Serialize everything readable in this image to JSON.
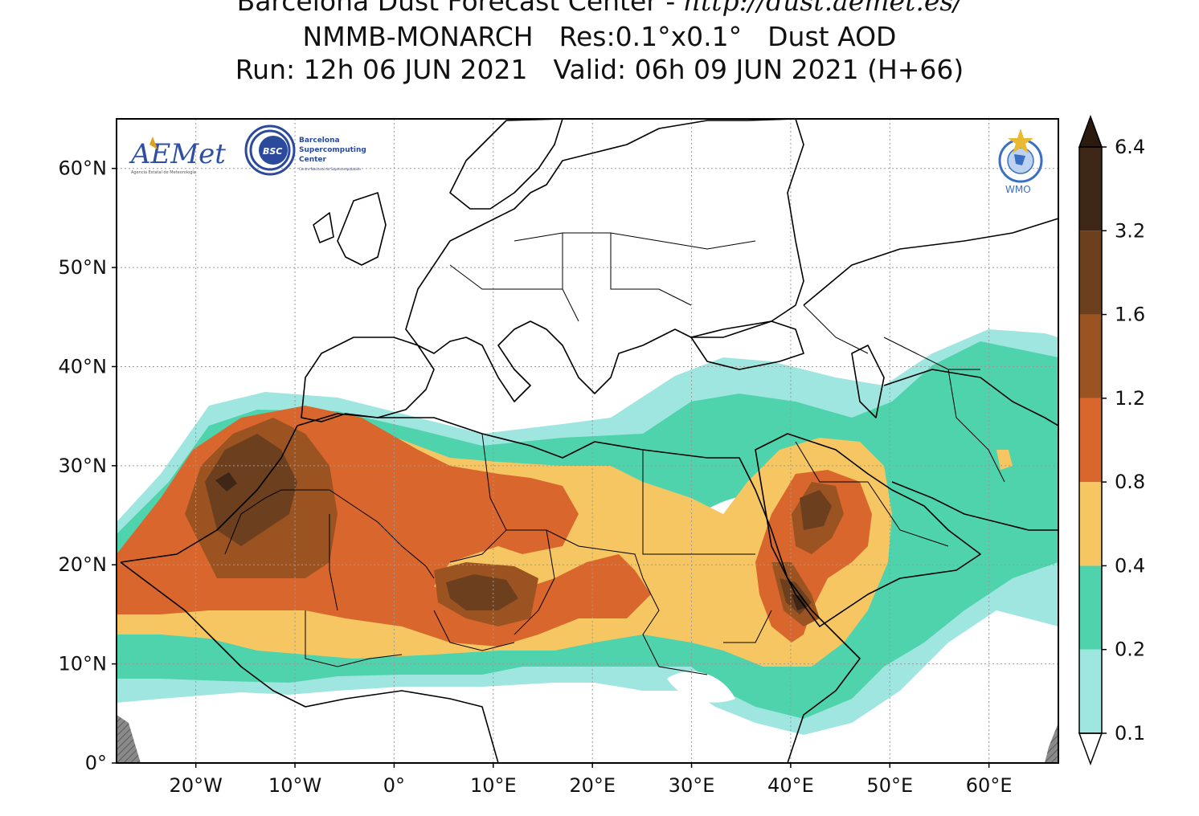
{
  "header": {
    "line1_text": "Barcelona Dust Forecast Center - ",
    "line1_url": "http://dust.aemet.es/",
    "model": "NMMB-MONARCH",
    "resolution": "Res:0.1°x0.1°",
    "variable": "Dust AOD",
    "run": "Run: 12h 06 JUN 2021",
    "valid": "Valid: 06h 09 JUN 2021 (H+66)"
  },
  "logos": {
    "aemet_text": "AEMet",
    "aemet_sub": "Agencia Estatal de Meteorología",
    "bsc_badge": "BSC",
    "bsc_text_1": "Barcelona",
    "bsc_text_2": "Supercomputing",
    "bsc_text_3": "Center",
    "bsc_sub": "Centro Nacional de Supercomputación",
    "wmo_text": "WMO"
  },
  "map": {
    "lon_range": [
      -28,
      67
    ],
    "lat_range": [
      0,
      65
    ],
    "lon_ticks": [
      {
        "value": -20,
        "label": "20°W"
      },
      {
        "value": -10,
        "label": "10°W"
      },
      {
        "value": 0,
        "label": "0°"
      },
      {
        "value": 10,
        "label": "10°E"
      },
      {
        "value": 20,
        "label": "20°E"
      },
      {
        "value": 30,
        "label": "30°E"
      },
      {
        "value": 40,
        "label": "40°E"
      },
      {
        "value": 50,
        "label": "50°E"
      },
      {
        "value": 60,
        "label": "60°E"
      }
    ],
    "lat_ticks": [
      {
        "value": 0,
        "label": "0°"
      },
      {
        "value": 10,
        "label": "10°N"
      },
      {
        "value": 20,
        "label": "20°N"
      },
      {
        "value": 30,
        "label": "30°N"
      },
      {
        "value": 40,
        "label": "40°N"
      },
      {
        "value": 50,
        "label": "50°N"
      },
      {
        "value": 60,
        "label": "60°N"
      }
    ],
    "gridlines": true
  },
  "colorbar": {
    "levels": [
      "0.1",
      "0.2",
      "0.4",
      "0.8",
      "1.2",
      "1.6",
      "3.2",
      "6.4"
    ],
    "colors": [
      "#9ee6df",
      "#4fd3ad",
      "#f6c662",
      "#d9662c",
      "#9c5322",
      "#6c3f1e",
      "#3e2717"
    ],
    "under_color": "#ffffff",
    "over_color": "#2b1a0d",
    "extend": "both"
  }
}
